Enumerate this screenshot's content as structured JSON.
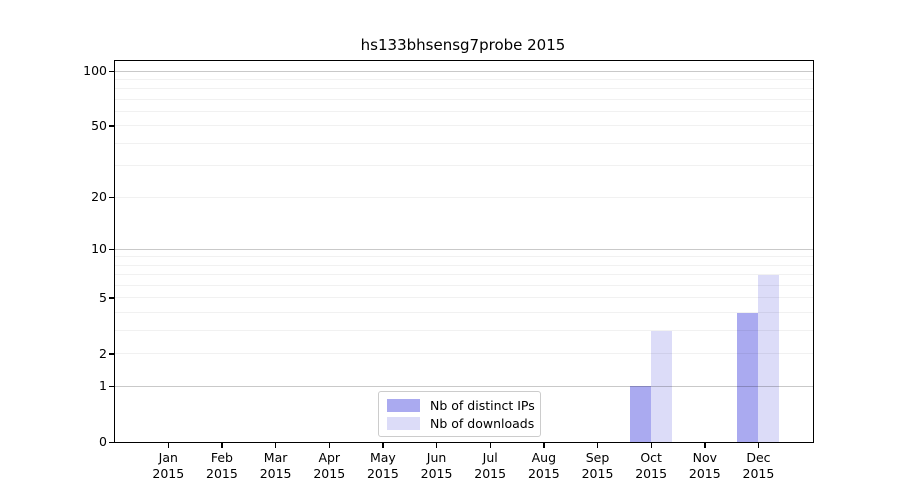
{
  "figure": {
    "background": "#ffffff"
  },
  "chart_data": {
    "type": "bar",
    "title": "hs133bhsensg7probe 2015",
    "year_label": "2015",
    "categories": [
      "Jan",
      "Feb",
      "Mar",
      "Apr",
      "May",
      "Jun",
      "Jul",
      "Aug",
      "Sep",
      "Oct",
      "Nov",
      "Dec"
    ],
    "series": [
      {
        "name": "Nb of distinct IPs",
        "color": "#aaaaf0",
        "values": [
          0,
          0,
          0,
          0,
          0,
          0,
          0,
          0,
          0,
          1,
          0,
          4
        ]
      },
      {
        "name": "Nb of downloads",
        "color": "#dcdcf8",
        "values": [
          0,
          0,
          0,
          0,
          0,
          0,
          0,
          0,
          0,
          3,
          0,
          7
        ]
      }
    ],
    "yticks": [
      0,
      1,
      2,
      5,
      10,
      20,
      50,
      100
    ],
    "ytick_major_gridlines": [
      1,
      10,
      100
    ],
    "ytick_minor_gridlines": [
      2,
      3,
      4,
      5,
      6,
      7,
      8,
      9,
      20,
      30,
      40,
      50,
      60,
      70,
      80,
      90
    ],
    "yscale": "log1p",
    "ylim": [
      0,
      113
    ],
    "xlabel": "",
    "ylabel": "",
    "grid": true,
    "legend_position": "lower center inside",
    "colors": {
      "axis": "#000000",
      "grid_major": "#c9c9c9",
      "grid_minor": "#efefef",
      "legend_border": "#cccccc"
    }
  }
}
